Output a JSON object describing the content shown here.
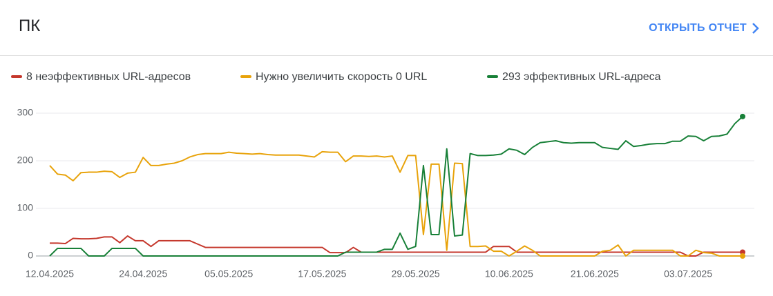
{
  "header": {
    "title": "ПК",
    "link": "ОТКРЫТЬ ОТЧЕТ"
  },
  "chart_data": {
    "type": "line",
    "categories": [
      "12.04.2025",
      null,
      null,
      null,
      null,
      null,
      null,
      null,
      null,
      null,
      null,
      null,
      "24.04.2025",
      null,
      null,
      null,
      null,
      null,
      null,
      null,
      null,
      null,
      null,
      "05.05.2025",
      null,
      null,
      null,
      null,
      null,
      null,
      null,
      null,
      null,
      null,
      null,
      "17.05.2025",
      null,
      null,
      null,
      null,
      null,
      null,
      null,
      null,
      null,
      null,
      null,
      "29.05.2025",
      null,
      null,
      null,
      null,
      null,
      null,
      null,
      null,
      null,
      null,
      null,
      "10.06.2025",
      null,
      null,
      null,
      null,
      null,
      null,
      null,
      null,
      null,
      null,
      "21.06.2025",
      null,
      null,
      null,
      null,
      null,
      null,
      null,
      null,
      null,
      null,
      null,
      "03.07.2025",
      null,
      null,
      null,
      null,
      null,
      null,
      null
    ],
    "series": [
      {
        "name": "8 неэффективных URL-адресов",
        "color": "#c5372c",
        "values": [
          27,
          27,
          26,
          37,
          36,
          36,
          37,
          40,
          40,
          28,
          42,
          32,
          32,
          20,
          32,
          32,
          32,
          32,
          32,
          25,
          18,
          18,
          18,
          18,
          18,
          18,
          18,
          18,
          18,
          18,
          18,
          18,
          18,
          18,
          18,
          18,
          7,
          7,
          7,
          18,
          8,
          8,
          8,
          8,
          8,
          8,
          8,
          8,
          8,
          8,
          8,
          8,
          8,
          8,
          8,
          8,
          8,
          20,
          20,
          20,
          8,
          8,
          8,
          8,
          8,
          8,
          8,
          8,
          8,
          8,
          8,
          8,
          8,
          8,
          8,
          8,
          8,
          8,
          8,
          8,
          8,
          8,
          0,
          0,
          8,
          8,
          8,
          8,
          8,
          8
        ]
      },
      {
        "name": "Нужно увеличить скорость 0 URL",
        "color": "#e8a30b",
        "values": [
          190,
          172,
          170,
          158,
          175,
          176,
          176,
          178,
          177,
          165,
          174,
          176,
          207,
          190,
          190,
          193,
          195,
          200,
          208,
          213,
          215,
          215,
          215,
          218,
          216,
          215,
          214,
          215,
          213,
          212,
          212,
          212,
          212,
          210,
          208,
          219,
          218,
          218,
          198,
          210,
          210,
          209,
          210,
          208,
          210,
          176,
          211,
          211,
          45,
          193,
          193,
          12,
          195,
          194,
          20,
          20,
          21,
          10,
          10,
          0,
          10,
          21,
          12,
          0,
          0,
          0,
          0,
          0,
          0,
          0,
          0,
          10,
          12,
          23,
          0,
          12,
          12,
          12,
          12,
          12,
          12,
          0,
          0,
          12,
          7,
          6,
          0,
          0,
          0,
          0
        ]
      },
      {
        "name": "293 эффективных URL-адреса",
        "color": "#188038",
        "values": [
          0,
          16,
          16,
          16,
          16,
          0,
          0,
          0,
          16,
          16,
          16,
          16,
          0,
          0,
          0,
          0,
          0,
          0,
          0,
          0,
          0,
          0,
          0,
          0,
          0,
          0,
          0,
          0,
          0,
          0,
          0,
          0,
          0,
          0,
          0,
          0,
          0,
          0,
          8,
          8,
          8,
          8,
          8,
          14,
          14,
          48,
          14,
          20,
          190,
          45,
          45,
          225,
          42,
          44,
          215,
          211,
          211,
          212,
          214,
          225,
          222,
          213,
          228,
          238,
          240,
          242,
          238,
          237,
          238,
          238,
          238,
          228,
          226,
          224,
          242,
          230,
          232,
          235,
          236,
          236,
          241,
          241,
          252,
          251,
          242,
          251,
          252,
          256,
          278,
          293
        ]
      }
    ],
    "ylim": [
      0,
      300
    ],
    "yticks": [
      0,
      100,
      200,
      300
    ],
    "grid": true
  }
}
